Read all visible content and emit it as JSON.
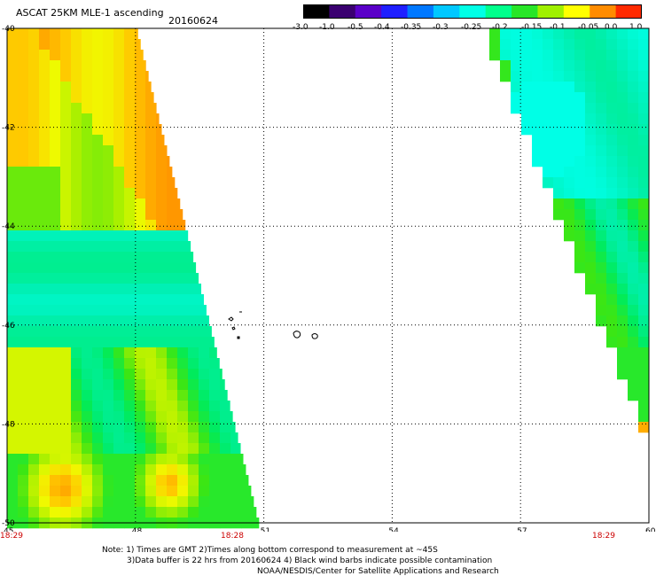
{
  "header": {
    "title": "ASCAT 25KM MLE-1 ascending",
    "date": "20160624"
  },
  "colorbar": {
    "ticks": [
      "-3.0",
      "-1.0",
      "-0.5",
      "-0.4",
      "-0.35",
      "-0.3",
      "-0.25",
      "-0.2",
      "-0.15",
      "-0.1",
      "-0.05",
      "0.0",
      "1.0"
    ],
    "colors": [
      "#000000",
      "#3a0070",
      "#5a00c8",
      "#1f1fff",
      "#0078ff",
      "#00c8ff",
      "#00ffe6",
      "#00ff8c",
      "#28e628",
      "#a0f000",
      "#ffff00",
      "#ff8c00",
      "#ff2a00"
    ]
  },
  "map": {
    "lon_ticks": [
      "45",
      "48",
      "51",
      "54",
      "57",
      "60"
    ],
    "lat_ticks": [
      "-40",
      "-42",
      "-44",
      "-46",
      "-48",
      "-50"
    ],
    "times": [
      "18:29",
      "18:28",
      "18:29"
    ]
  },
  "notes": {
    "line1": "Note: 1) Times are GMT 2)Times along bottom correspond to measurement at ~45S",
    "line2": "3)Data buffer is 22 hrs from 20160624 4) Black wind barbs indicate possible contamination",
    "line3": "NOAA/NESDIS/Center for Satellite Applications and Research"
  }
}
